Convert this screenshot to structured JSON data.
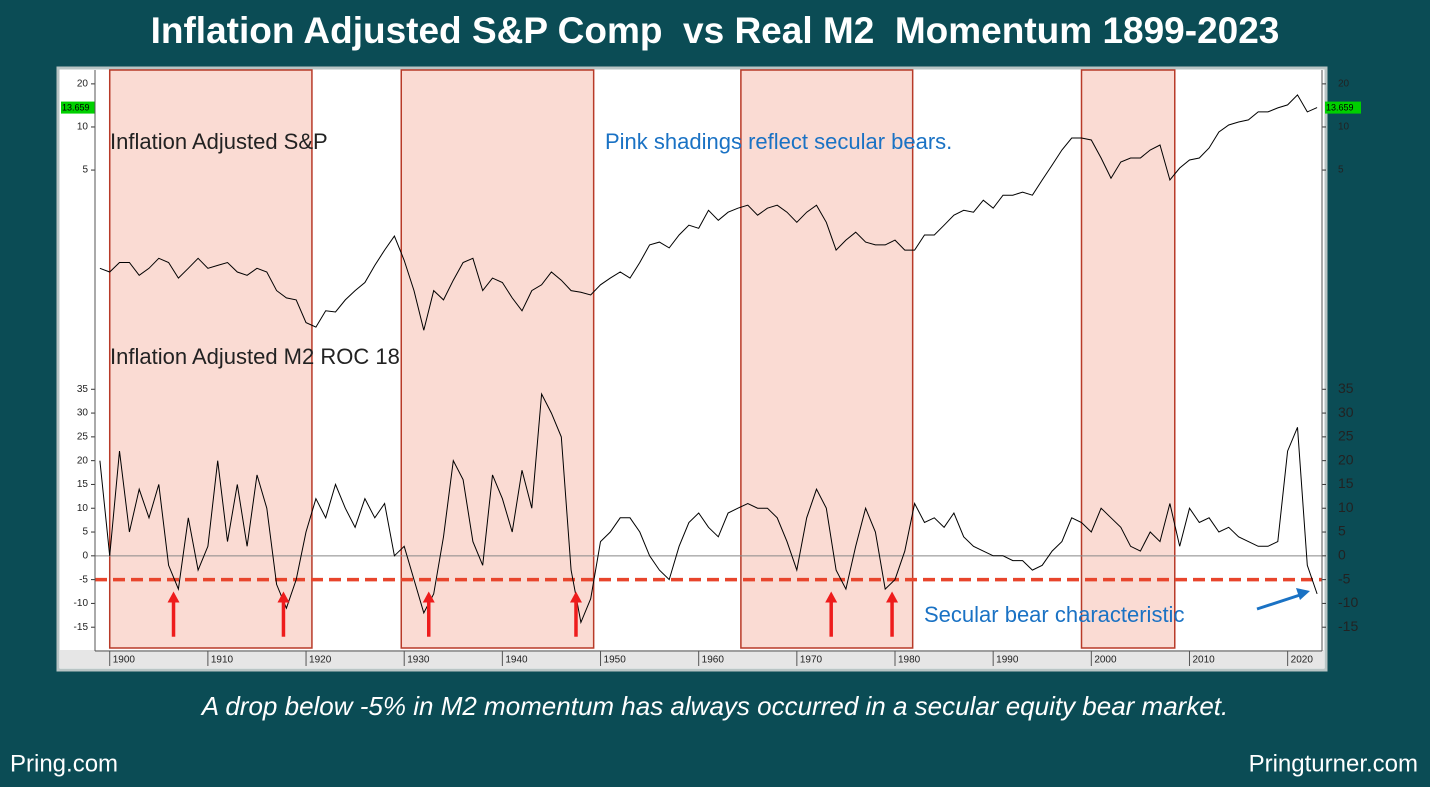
{
  "title": "Inflation Adjusted S&P Comp  vs Real M2  Momentum 1899-2023",
  "subtitle": "A drop below -5% in M2 momentum has always occurred in a secular equity bear market.",
  "footer_left": "Pring.com",
  "footer_right": "Pringturner.com",
  "chart_data": [
    {
      "type": "line",
      "log_scale": true,
      "annotation": "Pink shadings reflect secular bears.",
      "x": [
        1899,
        1900,
        1901,
        1902,
        1903,
        1904,
        1905,
        1906,
        1907,
        1908,
        1909,
        1910,
        1911,
        1912,
        1913,
        1914,
        1915,
        1916,
        1917,
        1918,
        1919,
        1920,
        1921,
        1922,
        1923,
        1924,
        1925,
        1926,
        1927,
        1928,
        1929,
        1930,
        1931,
        1932,
        1933,
        1934,
        1935,
        1936,
        1937,
        1938,
        1939,
        1940,
        1941,
        1942,
        1943,
        1944,
        1945,
        1946,
        1947,
        1948,
        1949,
        1950,
        1951,
        1952,
        1953,
        1954,
        1955,
        1956,
        1957,
        1958,
        1959,
        1960,
        1961,
        1962,
        1963,
        1964,
        1965,
        1966,
        1967,
        1968,
        1969,
        1970,
        1971,
        1972,
        1973,
        1974,
        1975,
        1976,
        1977,
        1978,
        1979,
        1980,
        1981,
        1982,
        1983,
        1984,
        1985,
        1986,
        1987,
        1988,
        1989,
        1990,
        1991,
        1992,
        1993,
        1994,
        1995,
        1996,
        1997,
        1998,
        1999,
        2000,
        2001,
        2002,
        2003,
        2004,
        2005,
        2006,
        2007,
        2008,
        2009,
        2010,
        2011,
        2012,
        2013,
        2014,
        2015,
        2016,
        2017,
        2018,
        2019,
        2020,
        2021,
        2022,
        2023
      ],
      "series": [
        {
          "name": "Inflation Adjusted S&P",
          "color": "#000000",
          "values": [
            1.03,
            0.97,
            1.13,
            1.13,
            0.92,
            1.03,
            1.21,
            1.13,
            0.88,
            1.03,
            1.21,
            1.03,
            1.08,
            1.13,
            0.97,
            0.92,
            1.03,
            0.97,
            0.72,
            0.64,
            0.62,
            0.43,
            0.4,
            0.52,
            0.51,
            0.62,
            0.72,
            0.82,
            1.08,
            1.38,
            1.73,
            1.17,
            0.72,
            0.38,
            0.72,
            0.62,
            0.85,
            1.13,
            1.21,
            0.72,
            0.88,
            0.82,
            0.64,
            0.52,
            0.72,
            0.79,
            0.97,
            0.85,
            0.72,
            0.7,
            0.67,
            0.79,
            0.88,
            0.97,
            0.88,
            1.13,
            1.5,
            1.57,
            1.43,
            1.76,
            2.06,
            1.96,
            2.62,
            2.23,
            2.54,
            2.71,
            2.84,
            2.42,
            2.71,
            2.84,
            2.54,
            2.16,
            2.54,
            2.84,
            2.16,
            1.38,
            1.62,
            1.84,
            1.57,
            1.5,
            1.5,
            1.62,
            1.38,
            1.38,
            1.76,
            1.76,
            2.06,
            2.42,
            2.62,
            2.54,
            3.08,
            2.71,
            3.34,
            3.34,
            3.51,
            3.34,
            4.26,
            5.42,
            6.9,
            8.37,
            8.37,
            8.11,
            6.07,
            4.39,
            5.69,
            6.07,
            6.07,
            6.9,
            7.48,
            4.26,
            5.17,
            5.88,
            6.07,
            7.13,
            9.23,
            10.33,
            10.84,
            11.2,
            12.74,
            12.74,
            13.58,
            14.26,
            16.75,
            12.74,
            13.66
          ]
        }
      ],
      "last_value": 13.659,
      "last_value_color": "#00d000",
      "xlim": [
        1898.5,
        2023.5
      ],
      "ylim": [
        0.3,
        25
      ],
      "yticks": [
        5,
        10,
        20
      ],
      "shaded_ranges": [
        [
          1900,
          1920.6
        ],
        [
          1929.7,
          1949.3
        ],
        [
          1964.3,
          1981.8
        ],
        [
          1999,
          2008.5
        ]
      ],
      "shade_color": "#fadbd3",
      "shade_edge_color": "#b83a28"
    },
    {
      "type": "line",
      "annotation": "Secular bear characteristic",
      "x": [
        1899,
        1900,
        1901,
        1902,
        1903,
        1904,
        1905,
        1906,
        1907,
        1908,
        1909,
        1910,
        1911,
        1912,
        1913,
        1914,
        1915,
        1916,
        1917,
        1918,
        1919,
        1920,
        1921,
        1922,
        1923,
        1924,
        1925,
        1926,
        1927,
        1928,
        1929,
        1930,
        1931,
        1932,
        1933,
        1934,
        1935,
        1936,
        1937,
        1938,
        1939,
        1940,
        1941,
        1942,
        1943,
        1944,
        1945,
        1946,
        1947,
        1948,
        1949,
        1950,
        1951,
        1952,
        1953,
        1954,
        1955,
        1956,
        1957,
        1958,
        1959,
        1960,
        1961,
        1962,
        1963,
        1964,
        1965,
        1966,
        1967,
        1968,
        1969,
        1970,
        1971,
        1972,
        1973,
        1974,
        1975,
        1976,
        1977,
        1978,
        1979,
        1980,
        1981,
        1982,
        1983,
        1984,
        1985,
        1986,
        1987,
        1988,
        1989,
        1990,
        1991,
        1992,
        1993,
        1994,
        1995,
        1996,
        1997,
        1998,
        1999,
        2000,
        2001,
        2002,
        2003,
        2004,
        2005,
        2006,
        2007,
        2008,
        2009,
        2010,
        2011,
        2012,
        2013,
        2014,
        2015,
        2016,
        2017,
        2018,
        2019,
        2020,
        2021,
        2022,
        2023
      ],
      "series": [
        {
          "name": "Inflation Adjusted M2 ROC 18",
          "color": "#000000",
          "values": [
            20,
            0,
            22,
            5,
            14,
            8,
            15,
            -2,
            -7,
            8,
            -3,
            2,
            20,
            3,
            15,
            2,
            17,
            10,
            -6,
            -11,
            -5,
            5,
            12,
            8,
            15,
            10,
            6,
            12,
            8,
            11,
            0,
            2,
            -5,
            -12,
            -8,
            4,
            20,
            16,
            3,
            -2,
            17,
            12,
            5,
            18,
            10,
            34,
            30,
            25,
            -3,
            -14,
            -9,
            3,
            5,
            8,
            8,
            5,
            0,
            -3,
            -5,
            2,
            7,
            9,
            6,
            4,
            9,
            10,
            11,
            10,
            10,
            8,
            3,
            -3,
            8,
            14,
            10,
            -3,
            -7,
            2,
            10,
            5,
            -7,
            -5,
            1,
            11,
            7,
            8,
            6,
            9,
            4,
            2,
            1,
            0,
            0,
            -1,
            -1,
            -3,
            -2,
            1,
            3,
            8,
            7,
            5,
            10,
            8,
            6,
            2,
            1,
            5,
            3,
            11,
            2,
            10,
            7,
            8,
            5,
            6,
            4,
            3,
            2,
            2,
            3,
            22,
            27,
            -2,
            -8
          ]
        }
      ],
      "xlim": [
        1898.5,
        2023.5
      ],
      "xticks": [
        1900,
        1910,
        1920,
        1930,
        1940,
        1950,
        1960,
        1970,
        1980,
        1990,
        2000,
        2010,
        2020
      ],
      "ylim": [
        -20,
        38
      ],
      "yticks": [
        -15,
        -10,
        -5,
        0,
        5,
        10,
        15,
        20,
        25,
        30,
        35
      ],
      "reference_lines": [
        {
          "value": 0,
          "color": "#888888",
          "style": "solid"
        },
        {
          "value": -5,
          "color": "#e8452c",
          "style": "dashed"
        }
      ],
      "arrows": [
        1906.5,
        1917.7,
        1932.5,
        1947.5,
        1973.5,
        1979.7
      ],
      "arrow_color": "#ee1c1c"
    }
  ]
}
